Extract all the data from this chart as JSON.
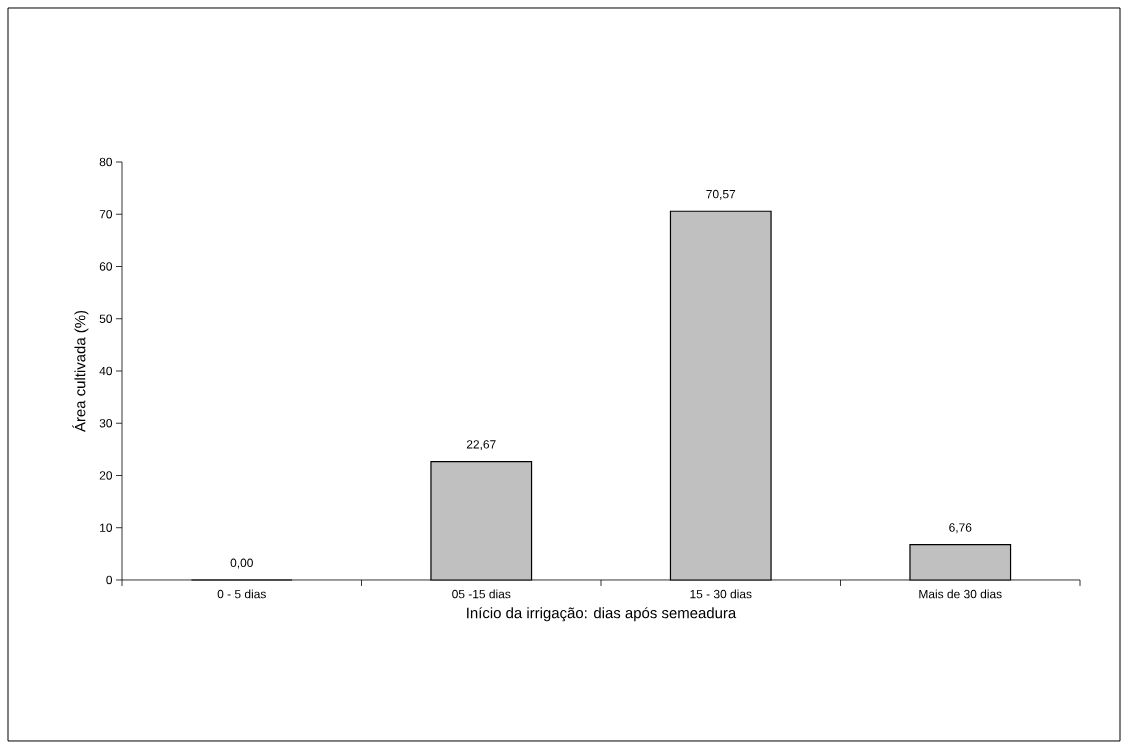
{
  "chart_data": {
    "type": "bar",
    "xlabel": "Início da irrigação: dias após semeadura",
    "ylabel": "Área cultivada (%)",
    "categories": [
      "0 - 5 dias",
      "05 -15 dias",
      "15 - 30 dias",
      "Mais de 30 dias"
    ],
    "values": [
      0,
      22.67,
      70.57,
      6.76
    ],
    "value_labels": [
      "0,00",
      "22,67",
      "70,57",
      "6,76"
    ],
    "color": "#c0c0c0",
    "ylim": [
      0,
      80
    ],
    "yticks": [
      0,
      10,
      20,
      30,
      40,
      50,
      60,
      70,
      80
    ],
    "grid": false
  }
}
